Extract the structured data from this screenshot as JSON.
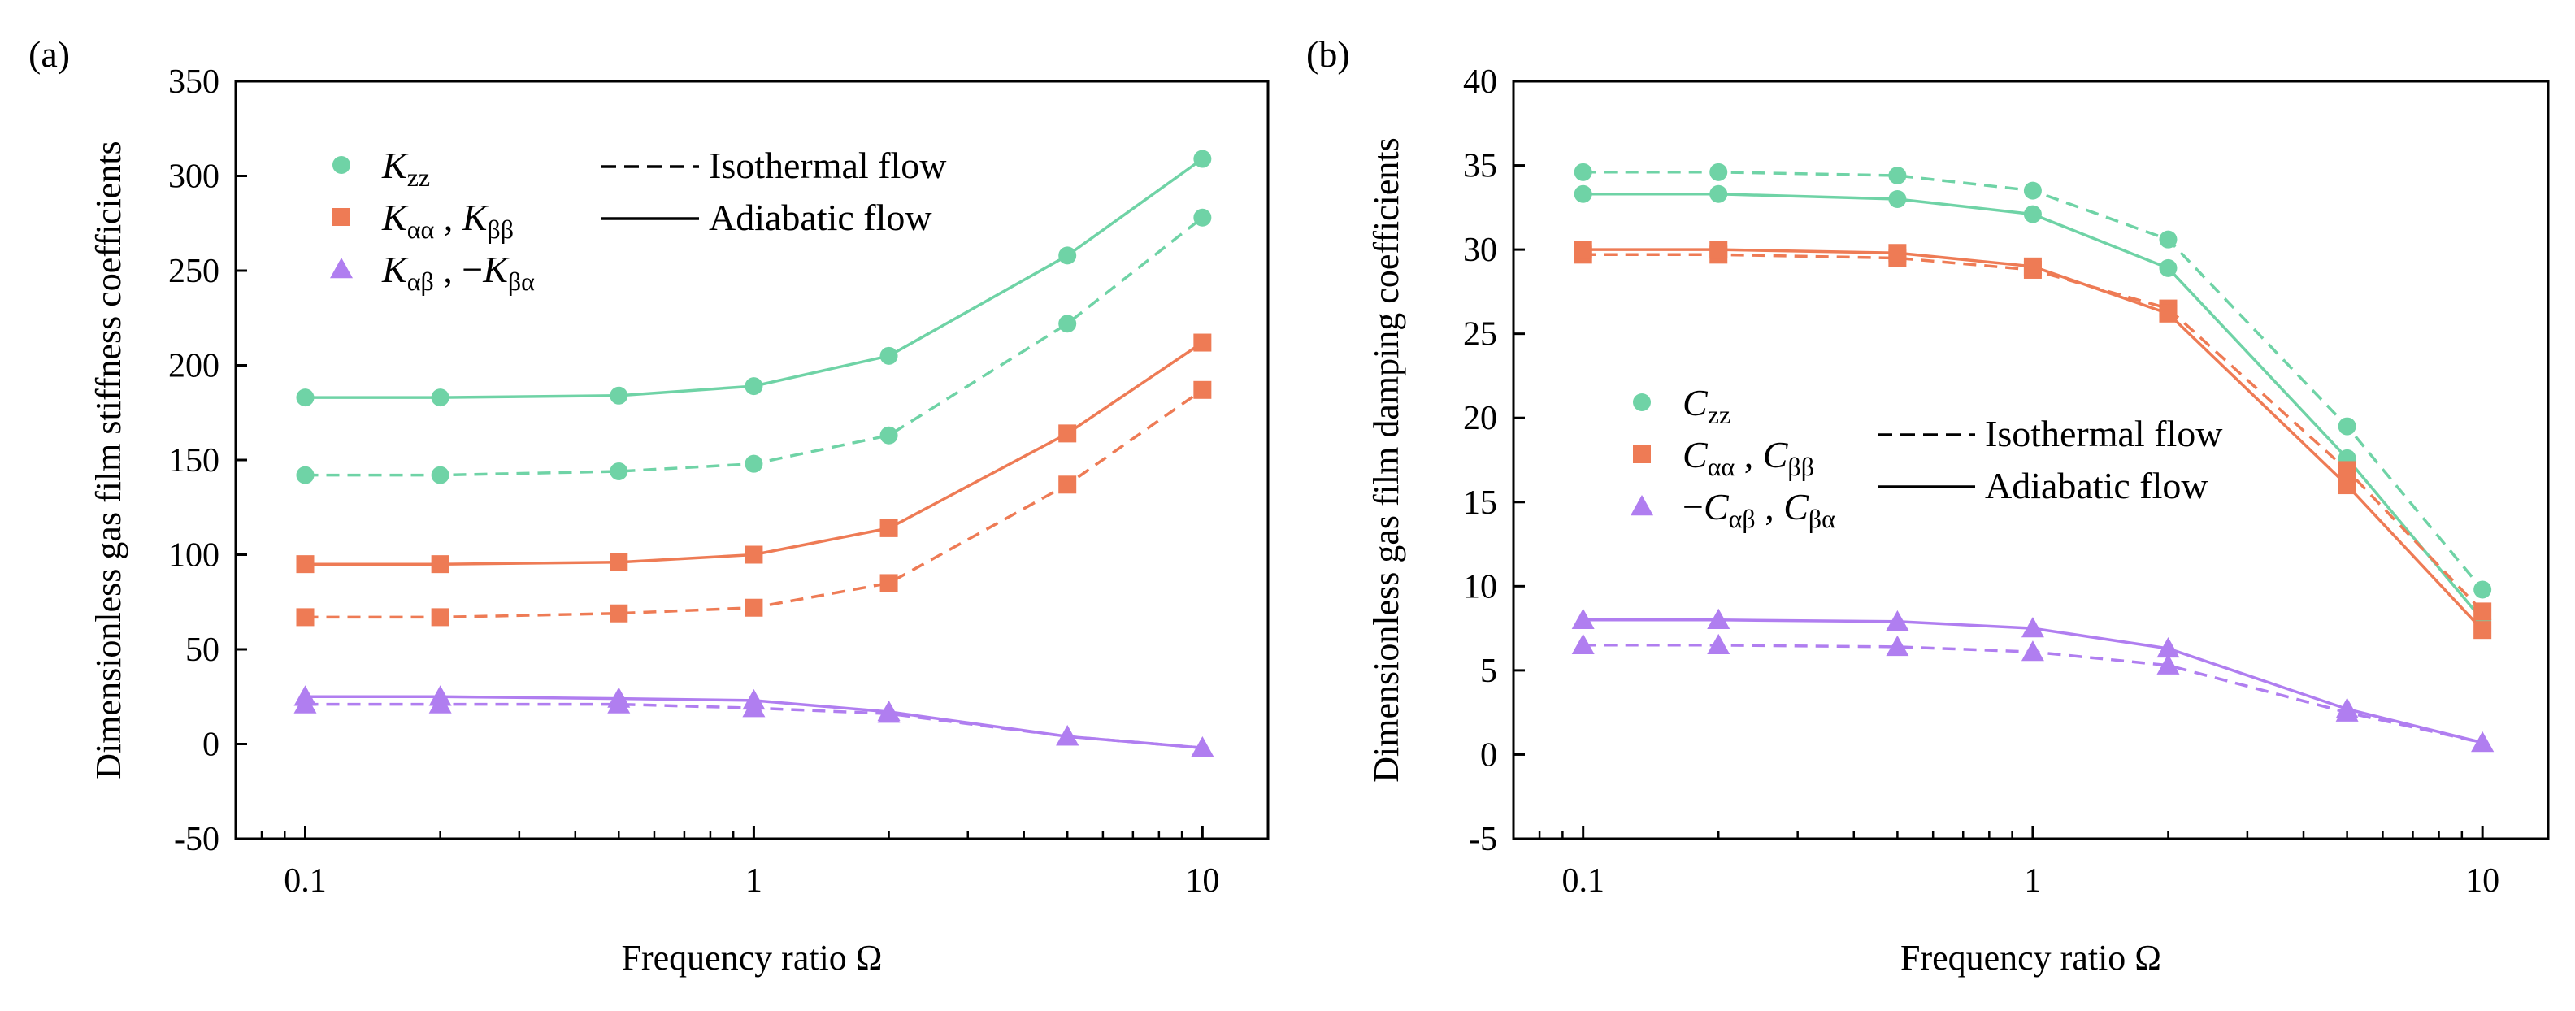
{
  "colors": {
    "zz": "#6fd3a6",
    "aa": "#ee7b55",
    "ab": "#b07ef0",
    "axis": "#000000"
  },
  "chart_data": [
    {
      "type": "line",
      "panel_label": "(a)",
      "xscale": "log",
      "xlim": [
        0.07,
        14
      ],
      "ylim": [
        -50,
        350
      ],
      "xticks": [
        0.1,
        1,
        10
      ],
      "xtick_labels": [
        "0.1",
        "1",
        "10"
      ],
      "yticks": [
        -50,
        0,
        50,
        100,
        150,
        200,
        250,
        300,
        350
      ],
      "ytick_labels": [
        "-50",
        "0",
        "50",
        "100",
        "150",
        "200",
        "250",
        "300",
        "350"
      ],
      "xlabel": "Frequency ratio Ω",
      "ylabel": "Dimensionless gas film stiffness coefficients",
      "x": [
        0.1,
        0.2,
        0.5,
        1,
        2,
        5,
        10
      ],
      "series": [
        {
          "name": "Kzz adiabatic",
          "group": "zz",
          "marker": "circle",
          "dash": "solid",
          "values": [
            183,
            183,
            184,
            189,
            205,
            258,
            309
          ]
        },
        {
          "name": "Kzz isothermal",
          "group": "zz",
          "marker": "circle",
          "dash": "dashed",
          "values": [
            142,
            142,
            144,
            148,
            163,
            222,
            278
          ]
        },
        {
          "name": "Kαα, Kββ adiabatic",
          "group": "aa",
          "marker": "square",
          "dash": "solid",
          "values": [
            95,
            95,
            96,
            100,
            114,
            164,
            212
          ]
        },
        {
          "name": "Kαα, Kββ isothermal",
          "group": "aa",
          "marker": "square",
          "dash": "dashed",
          "values": [
            67,
            67,
            69,
            72,
            85,
            137,
            187
          ]
        },
        {
          "name": "Kαβ, −Kβα adiabatic",
          "group": "ab",
          "marker": "triangle",
          "dash": "solid",
          "values": [
            25,
            25,
            24,
            23,
            17,
            4,
            -2
          ]
        },
        {
          "name": "Kαβ, −Kβα isothermal",
          "group": "ab",
          "marker": "triangle",
          "dash": "dashed",
          "values": [
            21,
            21,
            21,
            19,
            16,
            4,
            -2
          ]
        }
      ],
      "legend": {
        "placement": "top-left",
        "entries": [
          {
            "main": "K",
            "sub": "zz",
            "marker": "circle",
            "group": "zz"
          },
          {
            "main": "K",
            "sub": "αα",
            "sep": " , ",
            "main2": "K",
            "sub2": "ββ",
            "marker": "square",
            "group": "aa"
          },
          {
            "main": "K",
            "sub": "αβ",
            "sep": " , −",
            "main2": "K",
            "sub2": "βα",
            "marker": "triangle",
            "group": "ab"
          }
        ],
        "line_styles": [
          {
            "style": "dashed",
            "label": "Isothermal flow"
          },
          {
            "style": "solid",
            "label": "Adiabatic flow"
          }
        ]
      }
    },
    {
      "type": "line",
      "panel_label": "(b)",
      "xscale": "log",
      "xlim": [
        0.07,
        14
      ],
      "ylim": [
        -5,
        40
      ],
      "xticks": [
        0.1,
        1,
        10
      ],
      "xtick_labels": [
        "0.1",
        "1",
        "10"
      ],
      "yticks": [
        -5,
        0,
        5,
        10,
        15,
        20,
        25,
        30,
        35,
        40
      ],
      "ytick_labels": [
        "-5",
        "0",
        "5",
        "10",
        "15",
        "20",
        "25",
        "30",
        "35",
        "40"
      ],
      "xlabel": "Frequency ratio Ω",
      "ylabel": "Dimensionless gas film damping coefficients",
      "x": [
        0.1,
        0.2,
        0.5,
        1,
        2,
        5,
        10
      ],
      "series": [
        {
          "name": "Czz isothermal",
          "group": "zz",
          "marker": "circle",
          "dash": "dashed",
          "values": [
            34.6,
            34.6,
            34.4,
            33.5,
            30.6,
            19.5,
            9.8
          ]
        },
        {
          "name": "Czz adiabatic",
          "group": "zz",
          "marker": "circle",
          "dash": "solid",
          "values": [
            33.3,
            33.3,
            33.0,
            32.1,
            28.9,
            17.6,
            8.0
          ]
        },
        {
          "name": "Cαα, Cββ isothermal",
          "group": "aa",
          "marker": "square",
          "dash": "dashed",
          "values": [
            29.7,
            29.7,
            29.5,
            28.8,
            26.5,
            16.9,
            8.5
          ]
        },
        {
          "name": "Cαα, Cββ adiabatic",
          "group": "aa",
          "marker": "square",
          "dash": "solid",
          "values": [
            30.0,
            30.0,
            29.8,
            29.0,
            26.2,
            16.0,
            7.4
          ]
        },
        {
          "name": "−Cαβ, Cβα adiabatic",
          "group": "ab",
          "marker": "triangle",
          "dash": "solid",
          "values": [
            8.0,
            8.0,
            7.9,
            7.5,
            6.3,
            2.7,
            0.7
          ]
        },
        {
          "name": "−Cαβ, Cβα isothermal",
          "group": "ab",
          "marker": "triangle",
          "dash": "dashed",
          "values": [
            6.5,
            6.5,
            6.4,
            6.1,
            5.3,
            2.5,
            0.7
          ]
        }
      ],
      "legend": {
        "placement": "center-left",
        "entries": [
          {
            "main": "C",
            "sub": "zz",
            "marker": "circle",
            "group": "zz"
          },
          {
            "main": "C",
            "sub": "αα",
            "sep": " , ",
            "main2": "C",
            "sub2": "ββ",
            "marker": "square",
            "group": "aa"
          },
          {
            "prefix": "−",
            "main": "C",
            "sub": "αβ",
            "sep": " , ",
            "main2": "C",
            "sub2": "βα",
            "marker": "triangle",
            "group": "ab"
          }
        ],
        "line_styles": [
          {
            "style": "dashed",
            "label": "Isothermal flow"
          },
          {
            "style": "solid",
            "label": "Adiabatic flow"
          }
        ]
      }
    }
  ]
}
